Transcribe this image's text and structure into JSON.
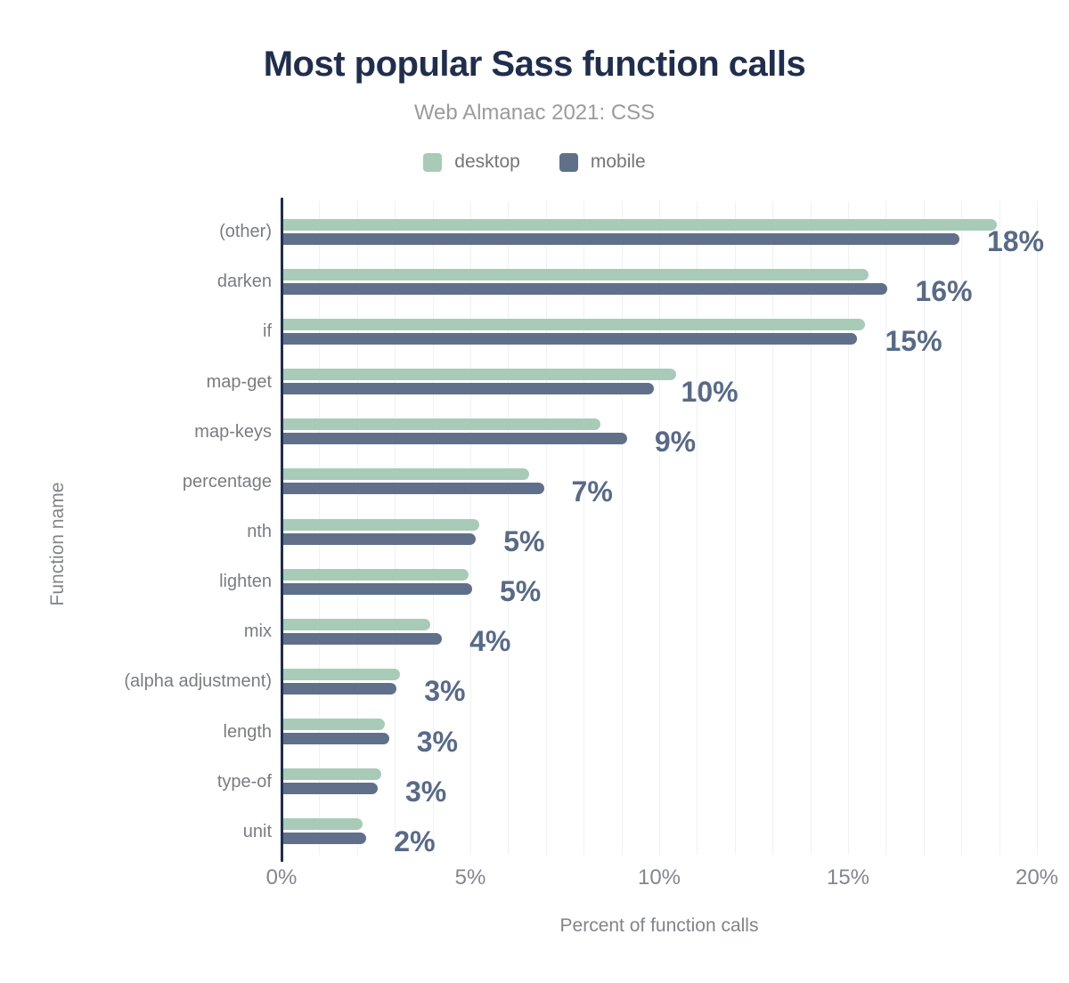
{
  "header": {
    "title": "Most popular Sass function calls",
    "subtitle": "Web Almanac 2021: CSS"
  },
  "legend": [
    {
      "label": "desktop",
      "color": "#a8cbb8"
    },
    {
      "label": "mobile",
      "color": "#61708a"
    }
  ],
  "colors": {
    "title_navy": "#202e4e",
    "axis_line": "#202e4e",
    "desktop_green": "#a8cbb8",
    "mobile_blue": "#61708a",
    "value_label": "#586a88",
    "gridline": "#f0f1f2"
  },
  "chart_data": {
    "type": "bar",
    "orientation": "horizontal",
    "title": "Most popular Sass function calls",
    "subtitle": "Web Almanac 2021: CSS",
    "xlabel": "Percent of function calls",
    "ylabel": "Function name",
    "xlim": [
      0,
      20
    ],
    "grid": "vertical lines every 1%, legend at top center",
    "categories": [
      "(other)",
      "darken",
      "if",
      "map-get",
      "map-keys",
      "percentage",
      "nth",
      "lighten",
      "mix",
      "(alpha adjustment)",
      "length",
      "type-of",
      "unit"
    ],
    "series": [
      {
        "name": "desktop",
        "color": "#a8cbb8",
        "values": [
          18.9,
          15.5,
          15.4,
          10.4,
          8.4,
          6.5,
          5.2,
          4.9,
          3.9,
          3.1,
          2.7,
          2.6,
          2.1
        ]
      },
      {
        "name": "mobile",
        "color": "#61708a",
        "values": [
          17.9,
          16.0,
          15.2,
          9.8,
          9.1,
          6.9,
          5.1,
          5.0,
          4.2,
          3.0,
          2.8,
          2.5,
          2.2
        ]
      }
    ],
    "value_labels": [
      "18%",
      "16%",
      "15%",
      "10%",
      "9%",
      "7%",
      "5%",
      "5%",
      "4%",
      "3%",
      "3%",
      "3%",
      "2%"
    ],
    "x_ticks": [
      "0%",
      "5%",
      "10%",
      "15%",
      "20%"
    ],
    "x_tick_values": [
      0,
      5,
      10,
      15,
      20
    ]
  }
}
